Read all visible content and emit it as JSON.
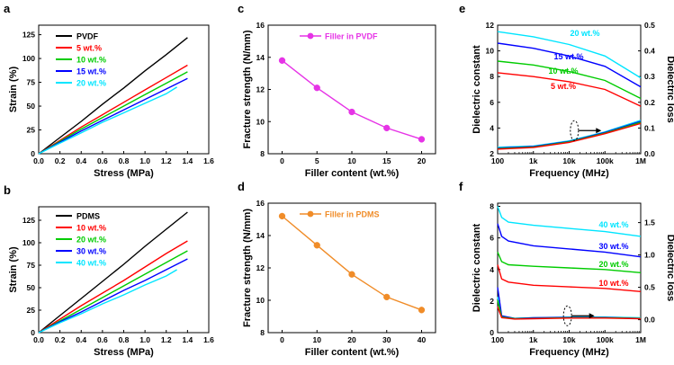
{
  "chart_data": [
    {
      "id": "a",
      "letter": "a",
      "type": "line",
      "xlabel": "Stress (MPa)",
      "ylabel": "Strain (%)",
      "xlim": [
        0,
        1.6
      ],
      "ylim": [
        0,
        135
      ],
      "xticks": [
        0,
        0.2,
        0.4,
        0.6,
        0.8,
        1.0,
        1.2,
        1.4,
        1.6
      ],
      "xtick_labels": [
        "0.0",
        "0.2",
        "0.4",
        "0.6",
        "0.8",
        "1.0",
        "1.2",
        "1.4",
        "1.6"
      ],
      "yticks": [
        0,
        25,
        50,
        75,
        100,
        125
      ],
      "ytick_labels": [
        "0",
        "25",
        "50",
        "75",
        "100",
        "125"
      ],
      "series": [
        {
          "name": "PVDF",
          "color": "#000000",
          "x": [
            0,
            0.2,
            0.4,
            0.6,
            0.8,
            1.0,
            1.2,
            1.4
          ],
          "y": [
            0,
            17,
            34,
            52,
            69,
            87,
            104,
            122
          ]
        },
        {
          "name": "5 wt.%",
          "color": "#ff0000",
          "x": [
            0,
            0.2,
            0.4,
            0.6,
            0.8,
            1.0,
            1.2,
            1.4
          ],
          "y": [
            0,
            14,
            28,
            41,
            54,
            67,
            80,
            93
          ]
        },
        {
          "name": "10 wt.%",
          "color": "#00cc00",
          "x": [
            0,
            0.2,
            0.4,
            0.6,
            0.8,
            1.0,
            1.2,
            1.4
          ],
          "y": [
            0,
            13,
            26,
            38,
            50,
            62,
            74,
            86
          ]
        },
        {
          "name": "15 wt.%",
          "color": "#0000ff",
          "x": [
            0,
            0.2,
            0.4,
            0.6,
            0.8,
            1.0,
            1.2,
            1.4
          ],
          "y": [
            0,
            12,
            24,
            35,
            46,
            57,
            68,
            79
          ]
        },
        {
          "name": "20 wt.%",
          "color": "#00e5ff",
          "x": [
            0,
            0.2,
            0.4,
            0.6,
            0.8,
            1.0,
            1.2,
            1.3
          ],
          "y": [
            0,
            11,
            22,
            33,
            43,
            53,
            63,
            70
          ]
        }
      ]
    },
    {
      "id": "b",
      "letter": "b",
      "type": "line",
      "xlabel": "Stress (MPa)",
      "ylabel": "Strain (%)",
      "xlim": [
        0,
        1.6
      ],
      "ylim": [
        0,
        140
      ],
      "xticks": [
        0,
        0.2,
        0.4,
        0.6,
        0.8,
        1.0,
        1.2,
        1.4,
        1.6
      ],
      "xtick_labels": [
        "0.0",
        "0.2",
        "0.4",
        "0.6",
        "0.8",
        "1.0",
        "1.2",
        "1.4",
        "1.6"
      ],
      "yticks": [
        0,
        25,
        50,
        75,
        100,
        125
      ],
      "ytick_labels": [
        "0",
        "25",
        "50",
        "75",
        "100",
        "125"
      ],
      "series": [
        {
          "name": "PDMS",
          "color": "#000000",
          "x": [
            0,
            0.2,
            0.4,
            0.6,
            0.8,
            1.0,
            1.2,
            1.4
          ],
          "y": [
            0,
            19,
            38,
            57,
            76,
            96,
            115,
            134
          ]
        },
        {
          "name": "10 wt.%",
          "color": "#ff0000",
          "x": [
            0,
            0.2,
            0.4,
            0.6,
            0.8,
            1.0,
            1.2,
            1.4
          ],
          "y": [
            0,
            15,
            30,
            44,
            58,
            73,
            88,
            102
          ]
        },
        {
          "name": "20 wt.%",
          "color": "#00cc00",
          "x": [
            0,
            0.2,
            0.4,
            0.6,
            0.8,
            1.0,
            1.2,
            1.4
          ],
          "y": [
            0,
            13,
            26,
            39,
            52,
            65,
            78,
            91
          ]
        },
        {
          "name": "30 wt.%",
          "color": "#0000ff",
          "x": [
            0,
            0.2,
            0.4,
            0.6,
            0.8,
            1.0,
            1.2,
            1.4
          ],
          "y": [
            0,
            12,
            23,
            35,
            47,
            58,
            70,
            82
          ]
        },
        {
          "name": "40 wt.%",
          "color": "#00e5ff",
          "x": [
            0,
            0.2,
            0.4,
            0.6,
            0.8,
            1.0,
            1.2,
            1.3
          ],
          "y": [
            0,
            11,
            21,
            32,
            42,
            53,
            63,
            70
          ]
        }
      ]
    },
    {
      "id": "c",
      "letter": "c",
      "type": "line",
      "xlabel": "Filler content (wt.%)",
      "ylabel": "Fracture strength (N/mm)",
      "xlim": [
        -2,
        22
      ],
      "ylim": [
        8,
        16
      ],
      "xticks": [
        0,
        5,
        10,
        15,
        20
      ],
      "xtick_labels": [
        "0",
        "5",
        "10",
        "15",
        "20"
      ],
      "yticks": [
        8,
        10,
        12,
        14,
        16
      ],
      "ytick_labels": [
        "8",
        "10",
        "12",
        "14",
        "16"
      ],
      "series": [
        {
          "name": "Filler in PVDF",
          "color": "#e633e6",
          "x": [
            0,
            5,
            10,
            15,
            20
          ],
          "y": [
            13.8,
            12.1,
            10.6,
            9.6,
            8.9
          ]
        }
      ]
    },
    {
      "id": "d",
      "letter": "d",
      "type": "line",
      "xlabel": "Filler content (wt.%)",
      "ylabel": "Fracture strength (N/mm)",
      "xlim": [
        -4,
        44
      ],
      "ylim": [
        8,
        16
      ],
      "xticks": [
        0,
        10,
        20,
        30,
        40
      ],
      "xtick_labels": [
        "0",
        "10",
        "20",
        "30",
        "40"
      ],
      "yticks": [
        8,
        10,
        12,
        14,
        16
      ],
      "ytick_labels": [
        "8",
        "10",
        "12",
        "14",
        "16"
      ],
      "series": [
        {
          "name": "Filler in PDMS",
          "color": "#f08c28",
          "x": [
            0,
            10,
            20,
            30,
            40
          ],
          "y": [
            15.2,
            13.4,
            11.6,
            10.2,
            9.4
          ]
        }
      ]
    },
    {
      "id": "e",
      "letter": "e",
      "type": "line",
      "xlabel": "Frequency (MHz)",
      "ylabel": "Dielectric constant",
      "y2label": "Dielectric loss",
      "xscale": "log",
      "xlim": [
        100,
        1000000
      ],
      "ylim": [
        2,
        12
      ],
      "y2lim": [
        0,
        0.5
      ],
      "xticks": [
        100,
        1000,
        10000,
        100000,
        1000000
      ],
      "xtick_labels": [
        "100",
        "1k",
        "10k",
        "100k",
        "1M"
      ],
      "yticks": [
        2,
        4,
        6,
        8,
        10,
        12
      ],
      "ytick_labels": [
        "2",
        "4",
        "6",
        "8",
        "10",
        "12"
      ],
      "y2ticks": [
        0,
        0.1,
        0.2,
        0.3,
        0.4,
        0.5
      ],
      "y2tick_labels": [
        "0.0",
        "0.1",
        "0.2",
        "0.3",
        "0.4",
        "0.5"
      ],
      "series": [
        {
          "name": "20 wt.%",
          "color": "#00e5ff",
          "x": [
            100,
            1000,
            10000,
            100000,
            1000000
          ],
          "y": [
            11.5,
            11.1,
            10.5,
            9.6,
            7.9
          ]
        },
        {
          "name": "15 wt.%",
          "color": "#0000ff",
          "x": [
            100,
            1000,
            10000,
            100000,
            1000000
          ],
          "y": [
            10.6,
            10.2,
            9.6,
            8.8,
            7.2
          ]
        },
        {
          "name": "10 wt.%",
          "color": "#00cc00",
          "x": [
            100,
            1000,
            10000,
            100000,
            1000000
          ],
          "y": [
            9.2,
            8.9,
            8.4,
            7.7,
            6.3
          ]
        },
        {
          "name": "5 wt.%",
          "color": "#ff0000",
          "x": [
            100,
            1000,
            10000,
            100000,
            1000000
          ],
          "y": [
            8.3,
            8.0,
            7.6,
            7.0,
            5.7
          ]
        }
      ],
      "loss_series": [
        {
          "name": "20 wt.% loss",
          "color": "#00e5ff",
          "x": [
            100,
            1000,
            10000,
            100000,
            1000000
          ],
          "y": [
            0.025,
            0.03,
            0.05,
            0.085,
            0.13
          ]
        },
        {
          "name": "15 wt.% loss",
          "color": "#0000ff",
          "x": [
            100,
            1000,
            10000,
            100000,
            1000000
          ],
          "y": [
            0.022,
            0.028,
            0.048,
            0.083,
            0.126
          ]
        },
        {
          "name": "10 wt.% loss",
          "color": "#00cc00",
          "x": [
            100,
            1000,
            10000,
            100000,
            1000000
          ],
          "y": [
            0.02,
            0.026,
            0.046,
            0.08,
            0.122
          ]
        },
        {
          "name": "5 wt.% loss",
          "color": "#ff0000",
          "x": [
            100,
            1000,
            10000,
            100000,
            1000000
          ],
          "y": [
            0.018,
            0.024,
            0.044,
            0.078,
            0.118
          ]
        }
      ]
    },
    {
      "id": "f",
      "letter": "f",
      "type": "line",
      "xlabel": "Frequency (MHz)",
      "ylabel": "Dielectric constant",
      "y2label": "Dielectric loss",
      "xscale": "log",
      "xlim": [
        100,
        1000000
      ],
      "ylim": [
        0,
        8.2
      ],
      "y2lim": [
        -0.2,
        1.8
      ],
      "xticks": [
        100,
        1000,
        10000,
        100000,
        1000000
      ],
      "xtick_labels": [
        "100",
        "1k",
        "10k",
        "100k",
        "1M"
      ],
      "yticks": [
        0,
        2,
        4,
        6,
        8
      ],
      "ytick_labels": [
        "0",
        "2",
        "4",
        "6",
        "8"
      ],
      "y2ticks": [
        0,
        0.5,
        1.0,
        1.5
      ],
      "y2tick_labels": [
        "0.0",
        "0.5",
        "1.0",
        "1.5"
      ],
      "series": [
        {
          "name": "40 wt.%",
          "color": "#00e5ff",
          "x": [
            100,
            130,
            200,
            1000,
            10000,
            100000,
            1000000
          ],
          "y": [
            8.0,
            7.3,
            7.0,
            6.8,
            6.6,
            6.4,
            6.1
          ]
        },
        {
          "name": "30 wt.%",
          "color": "#0000ff",
          "x": [
            100,
            130,
            200,
            1000,
            10000,
            100000,
            1000000
          ],
          "y": [
            6.9,
            6.1,
            5.8,
            5.5,
            5.3,
            5.1,
            4.8
          ]
        },
        {
          "name": "20 wt.%",
          "color": "#00cc00",
          "x": [
            100,
            130,
            200,
            1000,
            10000,
            100000,
            1000000
          ],
          "y": [
            5.1,
            4.5,
            4.3,
            4.2,
            4.1,
            4.0,
            3.8
          ]
        },
        {
          "name": "10 wt.%",
          "color": "#ff0000",
          "x": [
            100,
            130,
            200,
            1000,
            10000,
            100000,
            1000000
          ],
          "y": [
            4.3,
            3.4,
            3.2,
            3.0,
            2.9,
            2.8,
            2.6
          ]
        }
      ],
      "loss_series": [
        {
          "name": "40 wt.% loss",
          "color": "#00e5ff",
          "x": [
            100,
            130,
            300,
            1000,
            10000,
            100000,
            1000000
          ],
          "y": [
            0.35,
            0.05,
            0.02,
            0.03,
            0.04,
            0.04,
            0.03
          ]
        },
        {
          "name": "30 wt.% loss",
          "color": "#0000ff",
          "x": [
            100,
            130,
            300,
            1000,
            10000,
            100000,
            1000000
          ],
          "y": [
            0.5,
            0.06,
            0.02,
            0.03,
            0.035,
            0.035,
            0.02
          ]
        },
        {
          "name": "20 wt.% loss",
          "color": "#00cc00",
          "x": [
            100,
            130,
            300,
            1000,
            10000,
            100000,
            1000000
          ],
          "y": [
            0.3,
            0.04,
            0.015,
            0.02,
            0.03,
            0.03,
            0.02
          ]
        },
        {
          "name": "10 wt.% loss",
          "color": "#ff0000",
          "x": [
            100,
            130,
            300,
            1000,
            10000,
            100000,
            1000000
          ],
          "y": [
            0.2,
            0.03,
            0.01,
            0.015,
            0.025,
            0.025,
            0.015
          ]
        }
      ]
    }
  ]
}
